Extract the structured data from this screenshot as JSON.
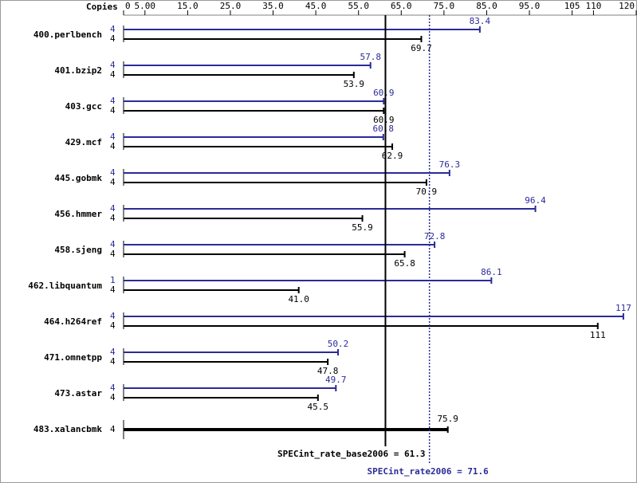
{
  "chart_data": {
    "type": "bar",
    "orientation": "horizontal",
    "copies_label": "Copies",
    "categories": [
      "400.perlbench",
      "401.bzip2",
      "403.gcc",
      "429.mcf",
      "445.gobmk",
      "456.hmmer",
      "458.sjeng",
      "462.libquantum",
      "464.h264ref",
      "471.omnetpp",
      "473.astar",
      "483.xalancbmk"
    ],
    "series": [
      {
        "color": "#2b2b99",
        "copies": [
          4,
          4,
          4,
          4,
          4,
          4,
          4,
          1,
          4,
          4,
          4,
          null
        ],
        "values": [
          83.4,
          57.8,
          60.9,
          60.8,
          76.3,
          96.4,
          72.8,
          86.1,
          117,
          50.2,
          49.7,
          null
        ],
        "value_labels": [
          "83.4",
          "57.8",
          "60.9",
          "60.8",
          "76.3",
          "96.4",
          "72.8",
          "86.1",
          "117",
          "50.2",
          "49.7",
          null
        ]
      },
      {
        "color": "#000000",
        "copies": [
          4,
          4,
          4,
          4,
          4,
          4,
          4,
          4,
          4,
          4,
          4,
          4
        ],
        "values": [
          69.7,
          53.9,
          60.9,
          62.9,
          70.9,
          55.9,
          65.8,
          41.0,
          111,
          47.8,
          45.5,
          75.9
        ],
        "value_labels": [
          "69.7",
          "53.9",
          "60.9",
          "62.9",
          "70.9",
          "55.9",
          "65.8",
          "41.0",
          "111",
          "47.8",
          "45.5",
          "75.9"
        ]
      }
    ],
    "xlim": [
      0,
      120
    ],
    "xticks": [
      0,
      {
        "value": 5,
        "label": "5.00"
      },
      {
        "value": 15,
        "label": "15.0"
      },
      {
        "value": 25,
        "label": "25.0"
      },
      {
        "value": 35,
        "label": "35.0"
      },
      {
        "value": 45,
        "label": "45.0"
      },
      {
        "value": 55,
        "label": "55.0"
      },
      {
        "value": 65,
        "label": "65.0"
      },
      {
        "value": 75,
        "label": "75.0"
      },
      {
        "value": 85,
        "label": "85.0"
      },
      {
        "value": 95,
        "label": "95.0"
      },
      105,
      110,
      120
    ],
    "reference_lines": [
      {
        "label": "SPECint_rate_base2006 = 61.3",
        "value": 61.3,
        "color": "#000000",
        "style": "solid"
      },
      {
        "label": "SPECint_rate2006 = 71.6",
        "value": 71.6,
        "color": "#2b2b99",
        "style": "dotted"
      }
    ]
  }
}
